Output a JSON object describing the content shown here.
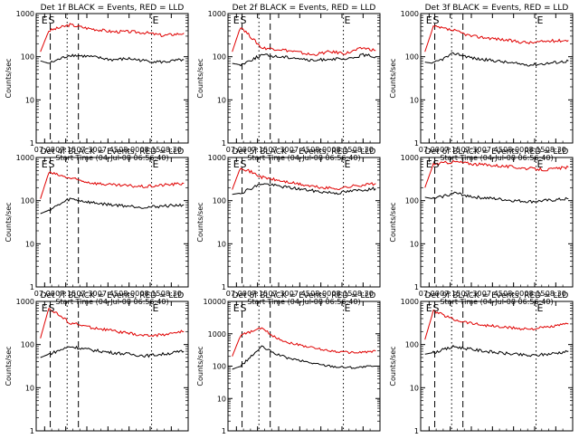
{
  "figure": {
    "ylabel": "Counts/sec",
    "xlabel": "Start Time (04-Jul-08 06:56:40)",
    "marker_s": "S",
    "marker_e": "E",
    "colors": {
      "events": "#000000",
      "lld": "#e00000",
      "axis": "#000000"
    }
  },
  "chart_data": [
    {
      "type": "line",
      "title": "Det 1f BLACK = Events, RED = LLD",
      "x_ticks": [
        "07:00",
        "07:15",
        "07:30",
        "07:45",
        "08:00",
        "08:15",
        "08:30"
      ],
      "y_ticks": [
        "1",
        "10",
        "100",
        "1000"
      ],
      "y_scale": "log",
      "ylim": [
        1,
        1000
      ],
      "markers": {
        "E1": "06:59",
        "S": "07:02",
        "E2": "08:16"
      },
      "dashed": [
        "07:04",
        "07:24"
      ],
      "dotted": [
        "07:16",
        "08:16"
      ],
      "series": [
        {
          "color": "red",
          "values": [
            [
              6.95,
              130
            ],
            [
              7.05,
              400
            ],
            [
              7.3,
              550
            ],
            [
              7.5,
              460
            ],
            [
              7.8,
              380
            ],
            [
              8.0,
              380
            ],
            [
              8.2,
              360
            ],
            [
              8.4,
              310
            ],
            [
              8.65,
              350
            ]
          ]
        },
        {
          "color": "black",
          "values": [
            [
              6.95,
              80
            ],
            [
              7.05,
              70
            ],
            [
              7.3,
              110
            ],
            [
              7.55,
              100
            ],
            [
              7.8,
              85
            ],
            [
              8.0,
              90
            ],
            [
              8.2,
              80
            ],
            [
              8.4,
              75
            ],
            [
              8.65,
              85
            ]
          ]
        }
      ]
    },
    {
      "type": "line",
      "title": "Det 2f BLACK = Events, RED = LLD",
      "x_ticks": [
        "07:00",
        "07:15",
        "07:30",
        "07:45",
        "08:00",
        "08:15",
        "08:30"
      ],
      "y_ticks": [
        "1",
        "10",
        "100",
        "1000"
      ],
      "y_scale": "log",
      "ylim": [
        1,
        1000
      ],
      "markers": {
        "E1": "06:59",
        "S": "07:02",
        "E2": "08:16"
      },
      "dashed": [
        "07:04",
        "07:24"
      ],
      "dotted": [
        "07:16",
        "08:16"
      ],
      "series": [
        {
          "color": "red",
          "values": [
            [
              6.95,
              130
            ],
            [
              7.05,
              500
            ],
            [
              7.3,
              160
            ],
            [
              7.5,
              150
            ],
            [
              7.7,
              130
            ],
            [
              7.9,
              110
            ],
            [
              8.1,
              130
            ],
            [
              8.3,
              120
            ],
            [
              8.5,
              160
            ],
            [
              8.65,
              140
            ]
          ]
        },
        {
          "color": "black",
          "values": [
            [
              6.95,
              70
            ],
            [
              7.05,
              65
            ],
            [
              7.3,
              110
            ],
            [
              7.5,
              100
            ],
            [
              7.7,
              95
            ],
            [
              7.9,
              80
            ],
            [
              8.1,
              90
            ],
            [
              8.3,
              85
            ],
            [
              8.5,
              110
            ],
            [
              8.65,
              100
            ]
          ]
        }
      ]
    },
    {
      "type": "line",
      "title": "Det 3f BLACK = Events, RED = LLD",
      "x_ticks": [
        "07:00",
        "07:15",
        "07:30",
        "07:45",
        "08:00",
        "08:15",
        "08:30"
      ],
      "y_ticks": [
        "1",
        "10",
        "100",
        "1000"
      ],
      "y_scale": "log",
      "ylim": [
        1,
        1000
      ],
      "markers": {
        "E1": "06:59",
        "S": "07:02",
        "E2": "08:16"
      },
      "dashed": [
        "07:04",
        "07:24"
      ],
      "dotted": [
        "07:16",
        "08:16"
      ],
      "series": [
        {
          "color": "red",
          "values": [
            [
              6.95,
              130
            ],
            [
              7.05,
              500
            ],
            [
              7.3,
              400
            ],
            [
              7.5,
              300
            ],
            [
              7.8,
              260
            ],
            [
              8.0,
              230
            ],
            [
              8.2,
              210
            ],
            [
              8.4,
              230
            ],
            [
              8.65,
              240
            ]
          ]
        },
        {
          "color": "black",
          "values": [
            [
              6.95,
              75
            ],
            [
              7.05,
              70
            ],
            [
              7.3,
              120
            ],
            [
              7.55,
              90
            ],
            [
              7.8,
              80
            ],
            [
              8.0,
              70
            ],
            [
              8.2,
              65
            ],
            [
              8.4,
              70
            ],
            [
              8.65,
              80
            ]
          ]
        }
      ]
    },
    {
      "type": "line",
      "title": "Det 4f BLACK = Events, RED = LLD",
      "x_ticks": [
        "07:00",
        "07:15",
        "07:30",
        "07:45",
        "08:00",
        "08:15",
        "08:30"
      ],
      "y_ticks": [
        "1",
        "10",
        "100",
        "1000"
      ],
      "y_scale": "log",
      "ylim": [
        1,
        1000
      ],
      "markers": {
        "E1": "06:59",
        "S": "07:02",
        "E2": "08:16"
      },
      "dashed": [
        "07:04",
        "07:24"
      ],
      "dotted": [
        "07:16",
        "08:16"
      ],
      "series": [
        {
          "color": "red",
          "values": [
            [
              6.95,
              110
            ],
            [
              7.05,
              450
            ],
            [
              7.3,
              330
            ],
            [
              7.55,
              260
            ],
            [
              7.8,
              230
            ],
            [
              8.0,
              220
            ],
            [
              8.2,
              210
            ],
            [
              8.4,
              230
            ],
            [
              8.65,
              250
            ]
          ]
        },
        {
          "color": "black",
          "values": [
            [
              6.95,
              50
            ],
            [
              7.05,
              60
            ],
            [
              7.3,
              110
            ],
            [
              7.55,
              90
            ],
            [
              7.8,
              80
            ],
            [
              8.0,
              75
            ],
            [
              8.2,
              70
            ],
            [
              8.4,
              75
            ],
            [
              8.65,
              80
            ]
          ]
        }
      ]
    },
    {
      "type": "line",
      "title": "Det 5f BLACK = Events, RED = LLD",
      "x_ticks": [
        "07:00",
        "07:15",
        "07:30",
        "07:45",
        "08:00",
        "08:15",
        "08:30"
      ],
      "y_ticks": [
        "1",
        "10",
        "100",
        "1000"
      ],
      "y_scale": "log",
      "ylim": [
        1,
        1000
      ],
      "markers": {
        "E1": "06:59",
        "S": "07:02",
        "E2": "08:16"
      },
      "dashed": [
        "07:04",
        "07:24"
      ],
      "dotted": [
        "07:16",
        "08:16"
      ],
      "series": [
        {
          "color": "red",
          "values": [
            [
              6.95,
              180
            ],
            [
              7.05,
              600
            ],
            [
              7.3,
              350
            ],
            [
              7.55,
              280
            ],
            [
              7.8,
              230
            ],
            [
              8.0,
              200
            ],
            [
              8.2,
              190
            ],
            [
              8.4,
              220
            ],
            [
              8.65,
              250
            ]
          ]
        },
        {
          "color": "black",
          "values": [
            [
              6.95,
              140
            ],
            [
              7.05,
              150
            ],
            [
              7.3,
              250
            ],
            [
              7.55,
              210
            ],
            [
              7.8,
              180
            ],
            [
              8.0,
              160
            ],
            [
              8.2,
              150
            ],
            [
              8.4,
              170
            ],
            [
              8.65,
              190
            ]
          ]
        }
      ]
    },
    {
      "type": "line",
      "title": "Det 6f BLACK = Events, RED = LLD",
      "x_ticks": [
        "07:00",
        "07:15",
        "07:30",
        "07:45",
        "08:00",
        "08:15",
        "08:30"
      ],
      "y_ticks": [
        "1",
        "10",
        "100",
        "1000"
      ],
      "y_scale": "log",
      "ylim": [
        1,
        1000
      ],
      "markers": {
        "E1": "06:59",
        "S": "07:02",
        "E2": "08:16"
      },
      "dashed": [
        "07:04",
        "07:24"
      ],
      "dotted": [
        "07:16",
        "08:16"
      ],
      "series": [
        {
          "color": "red",
          "values": [
            [
              6.95,
              200
            ],
            [
              7.05,
              700
            ],
            [
              7.3,
              800
            ],
            [
              7.55,
              700
            ],
            [
              7.8,
              650
            ],
            [
              8.0,
              600
            ],
            [
              8.2,
              550
            ],
            [
              8.4,
              520
            ],
            [
              8.65,
              600
            ]
          ]
        },
        {
          "color": "black",
          "values": [
            [
              6.95,
              120
            ],
            [
              7.05,
              110
            ],
            [
              7.3,
              150
            ],
            [
              7.55,
              120
            ],
            [
              7.8,
              110
            ],
            [
              8.0,
              100
            ],
            [
              8.2,
              95
            ],
            [
              8.4,
              100
            ],
            [
              8.65,
              110
            ]
          ]
        }
      ]
    },
    {
      "type": "line",
      "title": "Det 7f BLACK = Events, RED = LLD",
      "x_ticks": [
        "07:00",
        "07:15",
        "07:30",
        "07:45",
        "08:00",
        "08:15",
        "08:30"
      ],
      "y_ticks": [
        "1",
        "10",
        "100",
        "1000"
      ],
      "y_scale": "log",
      "ylim": [
        1,
        1000
      ],
      "markers": {
        "E1": "06:59",
        "S": "07:02",
        "E2": "08:16"
      },
      "dashed": [
        "07:04",
        "07:24"
      ],
      "dotted": [
        "07:16",
        "08:16"
      ],
      "series": [
        {
          "color": "red",
          "values": [
            [
              6.95,
              140
            ],
            [
              7.05,
              700
            ],
            [
              7.3,
              320
            ],
            [
              7.55,
              250
            ],
            [
              7.8,
              210
            ],
            [
              8.0,
              180
            ],
            [
              8.2,
              160
            ],
            [
              8.4,
              170
            ],
            [
              8.65,
              200
            ]
          ]
        },
        {
          "color": "black",
          "values": [
            [
              6.95,
              50
            ],
            [
              7.05,
              60
            ],
            [
              7.3,
              90
            ],
            [
              7.55,
              75
            ],
            [
              7.8,
              65
            ],
            [
              8.0,
              60
            ],
            [
              8.2,
              55
            ],
            [
              8.4,
              60
            ],
            [
              8.65,
              70
            ]
          ]
        }
      ]
    },
    {
      "type": "line",
      "title": "Det 8f BLACK = Events, RED = LLD",
      "x_ticks": [
        "07:00",
        "07:15",
        "07:30",
        "07:45",
        "08:00",
        "08:15",
        "08:30"
      ],
      "y_ticks": [
        "1",
        "10",
        "100",
        "1000",
        "10000"
      ],
      "y_scale": "log",
      "ylim": [
        1,
        10000
      ],
      "markers": {
        "E1": "06:59",
        "S": "07:02",
        "E2": "08:16"
      },
      "dashed": [
        "07:04",
        "07:24"
      ],
      "dotted": [
        "07:16",
        "08:16"
      ],
      "series": [
        {
          "color": "red",
          "values": [
            [
              6.95,
              200
            ],
            [
              7.05,
              900
            ],
            [
              7.3,
              1500
            ],
            [
              7.45,
              800
            ],
            [
              7.6,
              550
            ],
            [
              7.8,
              420
            ],
            [
              8.0,
              330
            ],
            [
              8.2,
              280
            ],
            [
              8.4,
              260
            ],
            [
              8.65,
              290
            ]
          ]
        },
        {
          "color": "black",
          "values": [
            [
              6.95,
              80
            ],
            [
              7.05,
              100
            ],
            [
              7.3,
              400
            ],
            [
              7.45,
              250
            ],
            [
              7.6,
              180
            ],
            [
              7.8,
              140
            ],
            [
              8.0,
              110
            ],
            [
              8.2,
              95
            ],
            [
              8.4,
              90
            ],
            [
              8.65,
              100
            ]
          ]
        }
      ]
    },
    {
      "type": "line",
      "title": "Det 9f BLACK = Events, RED = LLD",
      "x_ticks": [
        "07:00",
        "07:15",
        "07:30",
        "07:45",
        "08:00",
        "08:15",
        "08:30"
      ],
      "y_ticks": [
        "1",
        "10",
        "100",
        "1000"
      ],
      "y_scale": "log",
      "ylim": [
        1,
        1000
      ],
      "markers": {
        "E1": "06:59",
        "S": "07:02",
        "E2": "08:16"
      },
      "dashed": [
        "07:04",
        "07:24"
      ],
      "dotted": [
        "07:16",
        "08:16"
      ],
      "series": [
        {
          "color": "red",
          "values": [
            [
              6.95,
              130
            ],
            [
              7.05,
              600
            ],
            [
              7.3,
              380
            ],
            [
              7.55,
              300
            ],
            [
              7.8,
              260
            ],
            [
              8.0,
              240
            ],
            [
              8.2,
              230
            ],
            [
              8.4,
              250
            ],
            [
              8.65,
              300
            ]
          ]
        },
        {
          "color": "black",
          "values": [
            [
              6.95,
              60
            ],
            [
              7.05,
              65
            ],
            [
              7.3,
              90
            ],
            [
              7.55,
              75
            ],
            [
              7.8,
              65
            ],
            [
              8.0,
              60
            ],
            [
              8.2,
              55
            ],
            [
              8.4,
              60
            ],
            [
              8.65,
              70
            ]
          ]
        }
      ]
    }
  ]
}
